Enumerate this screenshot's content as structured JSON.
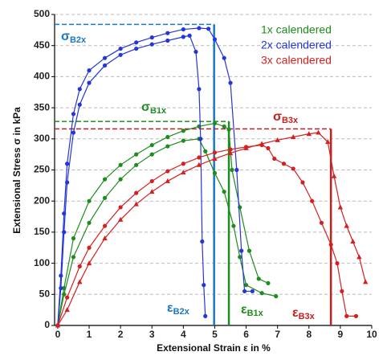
{
  "chart_data": {
    "type": "line",
    "x_label": "Extensional Strain ε in %",
    "y_label": "Extensional Stress σ in kPa",
    "xlim": [
      -0.1,
      10
    ],
    "ylim": [
      0,
      500
    ],
    "xticks": [
      0,
      1,
      2,
      3,
      4,
      5,
      6,
      7,
      8,
      9,
      10
    ],
    "yticks": [
      0,
      50,
      100,
      150,
      200,
      250,
      300,
      350,
      400,
      450,
      500
    ],
    "grid": true,
    "legend": "top-right",
    "series": [
      {
        "name": "1x calendered",
        "color": "#1e8c1e",
        "samples": [
          {
            "marker": "circle",
            "x": [
              0,
              0.2,
              0.5,
              1,
              1.5,
              2,
              2.5,
              3,
              3.5,
              4,
              4.5,
              5,
              5.3,
              5.45,
              5.55,
              5.8,
              6.1,
              6.4,
              6.7
            ],
            "values": [
              0,
              60,
              140,
              200,
              235,
              258,
              275,
              290,
              303,
              313,
              320,
              325,
              320,
              315,
              250,
              190,
              120,
              75,
              68
            ]
          },
          {
            "marker": "circle",
            "x": [
              0,
              0.2,
              0.5,
              1,
              1.5,
              2,
              2.5,
              3,
              3.5,
              4,
              4.5,
              4.7,
              5,
              5.3,
              5.6,
              5.8,
              6,
              6.5,
              6.95
            ],
            "values": [
              0,
              50,
              110,
              165,
              205,
              235,
              258,
              275,
              288,
              297,
              300,
              280,
              245,
              215,
              160,
              110,
              65,
              52,
              47
            ]
          }
        ]
      },
      {
        "name": "2x calendered",
        "color": "#2436d8",
        "samples": [
          {
            "marker": "circle",
            "x": [
              0,
              0.1,
              0.2,
              0.3,
              0.5,
              0.7,
              1,
              1.5,
              2,
              2.5,
              3,
              3.5,
              4,
              4.5,
              4.8,
              5.0,
              5.3,
              5.5,
              5.7,
              5.85,
              5.95,
              6.2
            ],
            "values": [
              0,
              80,
              180,
              260,
              340,
              380,
              410,
              430,
              445,
              455,
              463,
              470,
              476,
              478,
              477,
              460,
              430,
              390,
              250,
              120,
              55,
              55
            ]
          },
          {
            "marker": "circle",
            "x": [
              0,
              0.1,
              0.2,
              0.3,
              0.5,
              0.7,
              1,
              1.5,
              2,
              2.5,
              3,
              3.5,
              4,
              4.2,
              4.4,
              4.5,
              4.55,
              4.6,
              4.65,
              4.7
            ],
            "values": [
              0,
              60,
              150,
              230,
              310,
              355,
              390,
              418,
              435,
              445,
              452,
              458,
              464,
              466,
              440,
              380,
              300,
              135,
              65,
              15
            ]
          }
        ]
      },
      {
        "name": "3x calendered",
        "color": "#d42020",
        "samples": [
          {
            "marker": "circle",
            "x": [
              0,
              0.3,
              0.7,
              1,
              1.5,
              2,
              2.5,
              3,
              3.5,
              4,
              4.5,
              5,
              5.5,
              6,
              6.5,
              6.7,
              6.9,
              7.2,
              7.5,
              7.8,
              8.1,
              8.4,
              8.7,
              8.9,
              9.05,
              9.2,
              9.5
            ],
            "values": [
              0,
              45,
              95,
              125,
              160,
              190,
              213,
              232,
              248,
              260,
              270,
              278,
              283,
              287,
              290,
              285,
              268,
              260,
              252,
              230,
              200,
              165,
              130,
              100,
              55,
              15,
              15
            ]
          },
          {
            "marker": "triangle",
            "x": [
              0,
              0.3,
              0.7,
              1,
              1.5,
              2,
              2.5,
              3,
              3.5,
              4,
              4.5,
              5,
              5.5,
              6,
              6.5,
              7,
              7.5,
              8,
              8.3,
              8.6,
              8.8,
              9,
              9.2,
              9.4,
              9.6,
              9.8
            ],
            "values": [
              0,
              25,
              70,
              100,
              140,
              170,
              195,
              215,
              232,
              246,
              258,
              268,
              277,
              285,
              292,
              298,
              303,
              308,
              310,
              295,
              240,
              190,
              160,
              135,
              110,
              70
            ]
          }
        ]
      }
    ],
    "breaks": [
      {
        "color": "#1a78c2",
        "stress": 484,
        "strain": 4.98,
        "stress_label": {
          "symbol": "σ",
          "sub": "B2x"
        },
        "strain_label": {
          "symbol": "ε",
          "sub": "B2x"
        }
      },
      {
        "color": "#1e8c1e",
        "stress": 328,
        "strain": 5.45,
        "stress_label": {
          "symbol": "σ",
          "sub": "B1x"
        },
        "strain_label": {
          "symbol": "ε",
          "sub": "B1x"
        }
      },
      {
        "color": "#c42020",
        "stress": 316,
        "strain": 8.7,
        "stress_label": {
          "symbol": "σ",
          "sub": "B3x"
        },
        "strain_label": {
          "symbol": "ε",
          "sub": "B3x"
        }
      }
    ]
  }
}
